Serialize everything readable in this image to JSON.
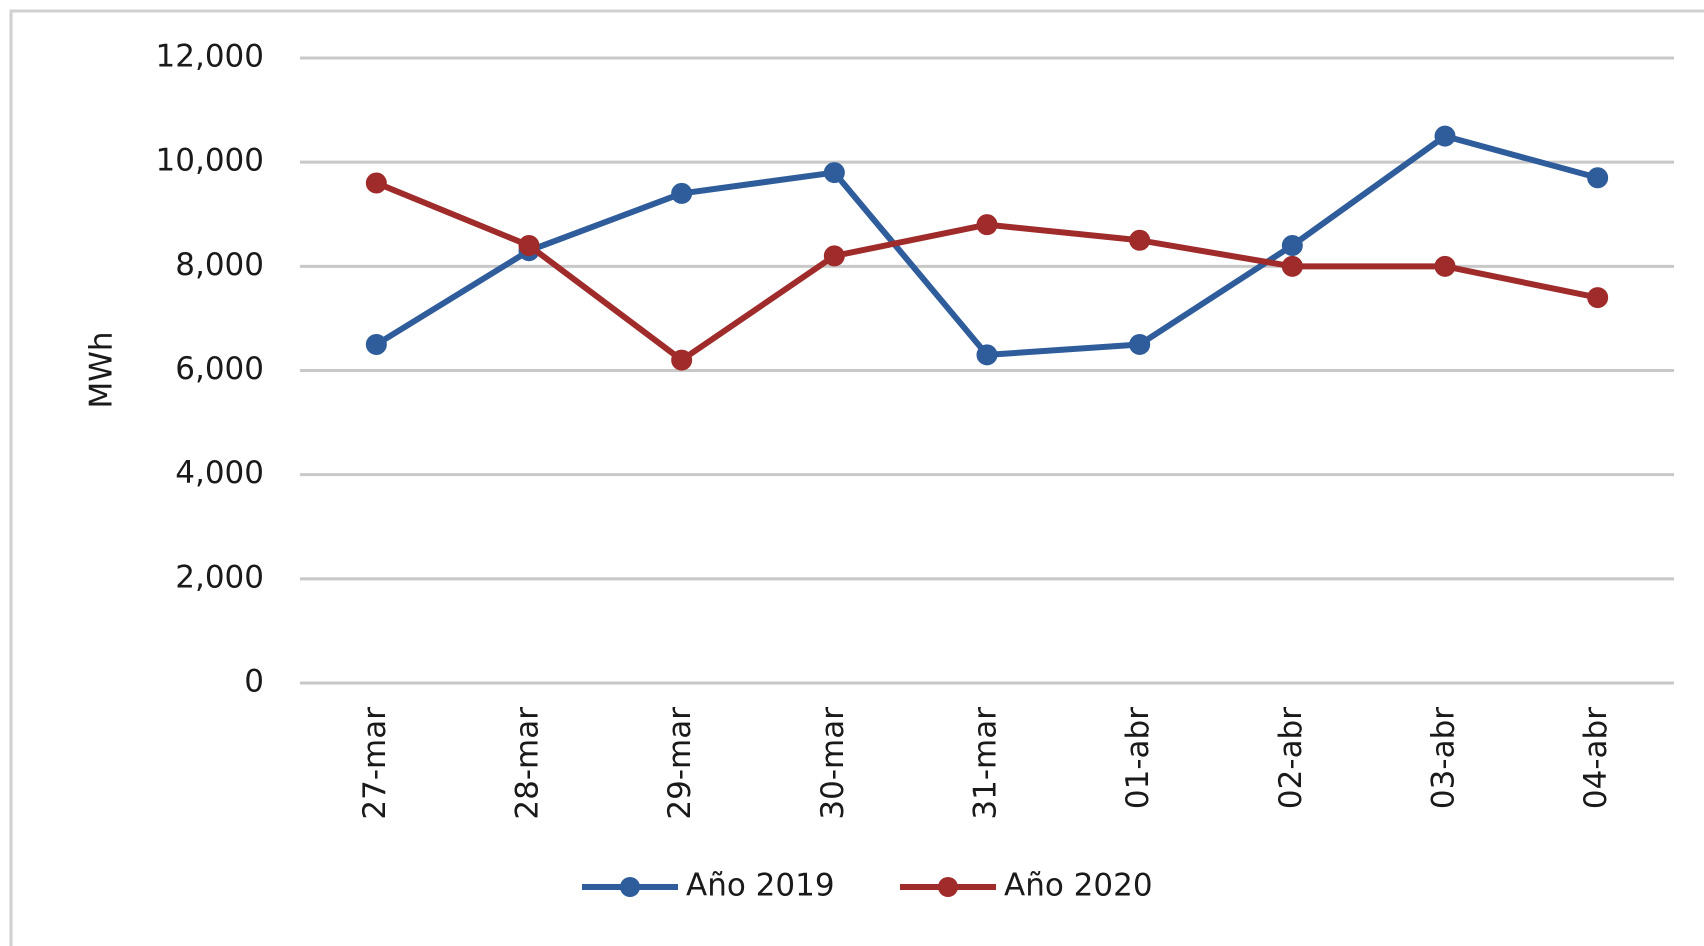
{
  "chart_data": {
    "type": "line",
    "y_label": "MWh",
    "categories": [
      "27-mar",
      "28-mar",
      "29-mar",
      "30-mar",
      "31-mar",
      "01-abr",
      "02-abr",
      "03-abr",
      "04-abr"
    ],
    "series": [
      {
        "name": "Año 2019",
        "color": "#2f5d9b",
        "values": [
          6500,
          8300,
          9400,
          9800,
          6300,
          6500,
          8400,
          10500,
          9700
        ]
      },
      {
        "name": "Año 2020",
        "color": "#a02b2b",
        "values": [
          9600,
          8400,
          6200,
          8200,
          8800,
          8500,
          8000,
          8000,
          7400
        ]
      }
    ],
    "ylim": [
      0,
      12000
    ],
    "yticks": [
      0,
      {
        "value": 2000,
        "label": "2,000"
      },
      {
        "value": 4000,
        "label": "4,000"
      },
      {
        "value": 6000,
        "label": "6,000"
      },
      {
        "value": 8000,
        "label": "8,000"
      },
      {
        "value": 10000,
        "label": "10,000"
      },
      {
        "value": 12000,
        "label": "12,000"
      }
    ],
    "grid": true,
    "legend": "bottom"
  }
}
